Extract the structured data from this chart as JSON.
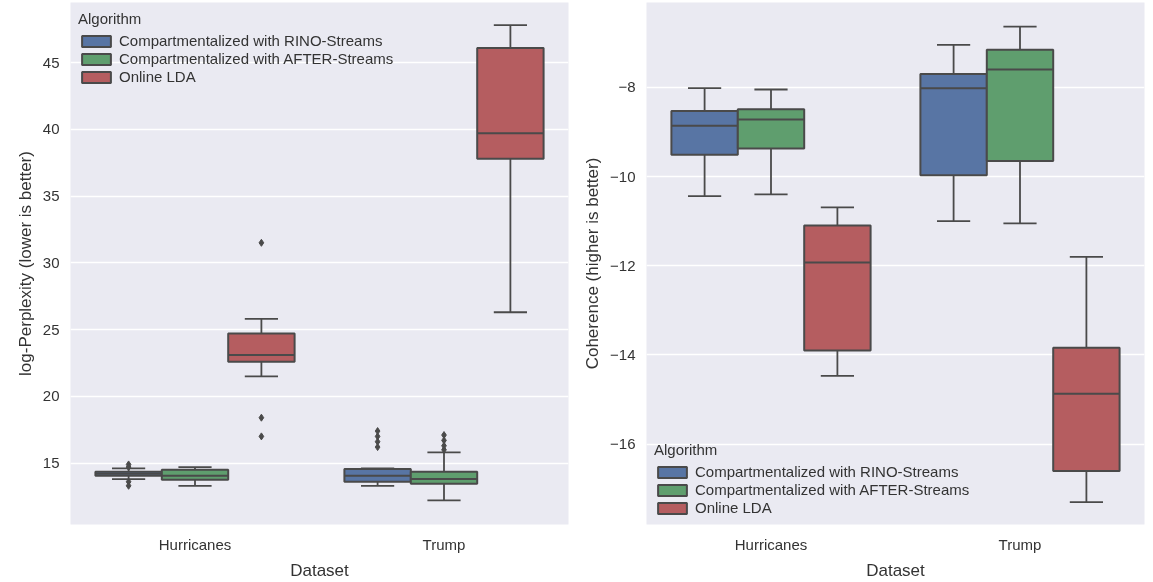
{
  "chart_data": [
    {
      "type": "box",
      "categories": [
        "Hurricanes",
        "Trump"
      ],
      "xlabel": "Dataset",
      "ylabel": "log-Perplexity (lower is better)",
      "legend_title": "Algorithm",
      "legend": "top left",
      "grid": "y",
      "ylim": [
        10.4,
        49.5
      ],
      "yticks": [
        15,
        20,
        25,
        30,
        35,
        40,
        45
      ],
      "series": [
        {
          "name": "Compartmentalized with RINO-Streams",
          "color": "#5875a4",
          "boxes": [
            {
              "low": 13.8,
              "q1": 14.05,
              "median": 14.2,
              "q3": 14.35,
              "high": 14.6,
              "outliers": [
                14.9,
                14.7,
                13.6,
                13.3
              ]
            },
            {
              "low": 13.3,
              "q1": 13.6,
              "median": 14.05,
              "q3": 14.55,
              "high": 14.6,
              "outliers": [
                17.4,
                17.0,
                16.6,
                16.2
              ]
            }
          ]
        },
        {
          "name": "Compartmentalized with AFTER-Streams",
          "color": "#5f9e6e",
          "boxes": [
            {
              "low": 13.3,
              "q1": 13.75,
              "median": 14.05,
              "q3": 14.5,
              "high": 14.7
            },
            {
              "low": 12.2,
              "q1": 13.45,
              "median": 13.8,
              "q3": 14.35,
              "high": 15.8,
              "outliers": [
                17.1,
                16.7,
                16.3,
                16.0
              ]
            }
          ]
        },
        {
          "name": "Online LDA",
          "color": "#b55d60",
          "boxes": [
            {
              "low": 21.5,
              "q1": 22.6,
              "median": 23.1,
              "q3": 24.7,
              "high": 25.8,
              "outliers": [
                31.5,
                18.4,
                17.0
              ]
            },
            {
              "low": 26.3,
              "q1": 37.8,
              "median": 39.7,
              "q3": 46.1,
              "high": 47.8
            }
          ]
        }
      ]
    },
    {
      "type": "box",
      "categories": [
        "Hurricanes",
        "Trump"
      ],
      "xlabel": "Dataset",
      "ylabel": "Coherence (higher is better)",
      "legend_title": "Algorithm",
      "legend": "bottom left",
      "grid": "y",
      "ylim": [
        -17.8,
        -6.1
      ],
      "yticks": [
        {
          "value": -16,
          "label": "−16"
        },
        {
          "value": -14,
          "label": "−14"
        },
        {
          "value": -12,
          "label": "−12"
        },
        {
          "value": -10,
          "label": "−10"
        },
        {
          "value": -8,
          "label": "−8"
        }
      ],
      "series": [
        {
          "name": "Compartmentalized with RINO-Streams",
          "color": "#5875a4",
          "boxes": [
            {
              "low": -10.44,
              "q1": -9.51,
              "median": -8.86,
              "q3": -8.53,
              "high": -8.02
            },
            {
              "low": -11.0,
              "q1": -9.97,
              "median": -8.02,
              "q3": -7.7,
              "high": -7.05
            }
          ]
        },
        {
          "name": "Compartmentalized with AFTER-Streams",
          "color": "#5f9e6e",
          "boxes": [
            {
              "low": -10.4,
              "q1": -9.37,
              "median": -8.72,
              "q3": -8.49,
              "high": -8.05
            },
            {
              "low": -11.05,
              "q1": -9.65,
              "median": -7.6,
              "q3": -7.16,
              "high": -6.64
            }
          ]
        },
        {
          "name": "Online LDA",
          "color": "#b55d60",
          "boxes": [
            {
              "low": -14.47,
              "q1": -13.9,
              "median": -11.93,
              "q3": -11.1,
              "high": -10.69
            },
            {
              "low": -17.3,
              "q1": -16.6,
              "median": -14.87,
              "q3": -13.84,
              "high": -11.8
            }
          ]
        }
      ]
    }
  ]
}
